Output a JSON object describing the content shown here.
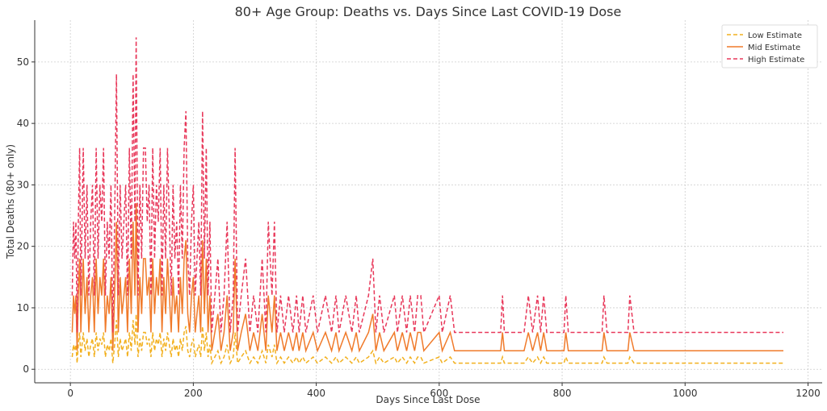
{
  "chart_data": {
    "type": "line",
    "title": "80+ Age Group: Deaths vs. Days Since Last COVID-19 Dose",
    "xlabel": "Days Since Last Dose",
    "ylabel": "Total Deaths (80+ only)",
    "x": [
      3,
      5,
      7,
      9,
      11,
      13,
      15,
      17,
      19,
      21,
      24,
      27,
      30,
      33,
      36,
      39,
      42,
      45,
      48,
      51,
      54,
      57,
      60,
      63,
      66,
      69,
      72,
      75,
      78,
      81,
      84,
      87,
      90,
      93,
      96,
      99,
      102,
      105,
      107,
      110,
      113,
      116,
      119,
      122,
      125,
      128,
      131,
      134,
      137,
      140,
      143,
      146,
      149,
      152,
      155,
      158,
      161,
      164,
      167,
      170,
      173,
      176,
      179,
      182,
      185,
      188,
      191,
      194,
      197,
      200,
      203,
      206,
      209,
      212,
      215,
      218,
      221,
      224,
      227,
      230,
      235,
      240,
      245,
      250,
      255,
      260,
      265,
      268,
      272,
      278,
      285,
      292,
      298,
      305,
      312,
      318,
      322,
      328,
      332,
      336,
      342,
      348,
      355,
      362,
      368,
      372,
      378,
      383,
      395,
      402,
      415,
      425,
      432,
      437,
      448,
      458,
      465,
      470,
      485,
      492,
      497,
      503,
      510,
      527,
      532,
      540,
      547,
      553,
      560,
      565,
      570,
      575,
      600,
      605,
      618,
      625,
      700,
      703,
      706,
      738,
      745,
      752,
      760,
      765,
      770,
      775,
      803,
      806,
      810,
      865,
      868,
      873,
      907,
      910,
      917,
      1160
    ],
    "series": [
      {
        "name": "Low Estimate",
        "color": "#f2b01e",
        "linestyle": "dashed",
        "values": [
          2,
          4,
          3,
          4,
          1,
          4,
          6,
          2,
          4,
          6,
          3,
          5,
          2,
          4,
          5,
          2,
          6,
          3,
          5,
          4,
          6,
          2,
          4,
          3,
          5,
          1,
          4,
          8,
          2,
          5,
          3,
          4,
          5,
          2,
          6,
          3,
          8,
          4,
          9,
          2,
          5,
          3,
          6,
          6,
          4,
          5,
          2,
          6,
          3,
          5,
          4,
          6,
          2,
          5,
          3,
          6,
          4,
          2,
          5,
          3,
          4,
          2,
          5,
          3,
          6,
          7,
          3,
          2,
          4,
          5,
          2,
          3,
          4,
          2,
          7,
          3,
          6,
          2,
          4,
          1,
          2,
          3,
          1,
          2,
          4,
          1,
          2,
          6,
          1,
          2,
          3,
          1,
          2,
          1,
          3,
          1,
          4,
          2,
          4,
          1,
          2,
          1,
          2,
          1,
          2,
          1,
          2,
          1,
          2,
          1,
          2,
          1,
          2,
          1,
          2,
          1,
          2,
          1,
          2,
          3,
          1,
          2,
          1,
          2,
          1,
          2,
          1,
          2,
          1,
          2,
          2,
          1,
          2,
          1,
          2,
          1,
          1,
          2,
          1,
          1,
          2,
          1,
          2,
          1,
          2,
          1,
          1,
          2,
          1,
          1,
          2,
          1,
          1,
          2,
          1,
          1
        ]
      },
      {
        "name": "Mid Estimate",
        "color": "#f07a2a",
        "linestyle": "solid",
        "values": [
          6,
          12,
          9,
          12,
          3,
          12,
          18,
          6,
          12,
          18,
          9,
          15,
          6,
          12,
          15,
          6,
          18,
          9,
          15,
          12,
          18,
          6,
          12,
          9,
          15,
          3,
          12,
          24,
          6,
          15,
          9,
          12,
          15,
          6,
          18,
          9,
          24,
          12,
          27,
          6,
          15,
          9,
          18,
          18,
          12,
          15,
          6,
          18,
          9,
          15,
          12,
          18,
          6,
          15,
          9,
          18,
          12,
          6,
          15,
          9,
          12,
          6,
          15,
          9,
          18,
          21,
          9,
          6,
          12,
          15,
          6,
          9,
          12,
          6,
          21,
          9,
          18,
          6,
          12,
          3,
          6,
          9,
          3,
          6,
          12,
          3,
          6,
          18,
          3,
          6,
          9,
          3,
          6,
          3,
          9,
          3,
          12,
          6,
          12,
          3,
          6,
          3,
          6,
          3,
          6,
          3,
          6,
          3,
          6,
          3,
          6,
          3,
          6,
          3,
          6,
          3,
          6,
          3,
          6,
          9,
          3,
          6,
          3,
          6,
          3,
          6,
          3,
          6,
          3,
          6,
          6,
          3,
          6,
          3,
          6,
          3,
          3,
          6,
          3,
          3,
          6,
          3,
          6,
          3,
          6,
          3,
          3,
          6,
          3,
          3,
          6,
          3,
          3,
          6,
          3,
          3
        ]
      },
      {
        "name": "High Estimate",
        "color": "#e8385a",
        "linestyle": "dashed",
        "values": [
          12,
          24,
          18,
          24,
          6,
          24,
          36,
          12,
          24,
          36,
          18,
          30,
          12,
          24,
          30,
          12,
          36,
          18,
          30,
          24,
          36,
          12,
          24,
          18,
          30,
          6,
          24,
          48,
          12,
          30,
          18,
          24,
          30,
          12,
          36,
          18,
          48,
          24,
          54,
          12,
          30,
          18,
          36,
          36,
          24,
          30,
          12,
          36,
          18,
          30,
          24,
          36,
          12,
          30,
          18,
          36,
          24,
          12,
          30,
          18,
          24,
          12,
          30,
          18,
          36,
          42,
          18,
          12,
          24,
          30,
          12,
          18,
          24,
          12,
          42,
          18,
          36,
          12,
          24,
          6,
          12,
          18,
          6,
          12,
          24,
          6,
          12,
          36,
          6,
          12,
          18,
          6,
          12,
          6,
          18,
          6,
          24,
          12,
          24,
          6,
          12,
          6,
          12,
          6,
          12,
          6,
          12,
          6,
          12,
          6,
          12,
          6,
          12,
          6,
          12,
          6,
          12,
          6,
          12,
          18,
          6,
          12,
          6,
          12,
          6,
          12,
          6,
          12,
          6,
          12,
          12,
          6,
          12,
          6,
          12,
          6,
          6,
          12,
          6,
          6,
          12,
          6,
          12,
          6,
          12,
          6,
          6,
          12,
          6,
          6,
          12,
          6,
          6,
          12,
          6,
          6
        ]
      }
    ],
    "xlim": [
      -58,
      1223
    ],
    "ylim": [
      -2.2,
      56.8
    ],
    "xticks": [
      0,
      200,
      400,
      600,
      800,
      1000,
      1200
    ],
    "yticks": [
      0,
      10,
      20,
      30,
      40,
      50
    ],
    "grid": true,
    "legend": "upper right"
  }
}
